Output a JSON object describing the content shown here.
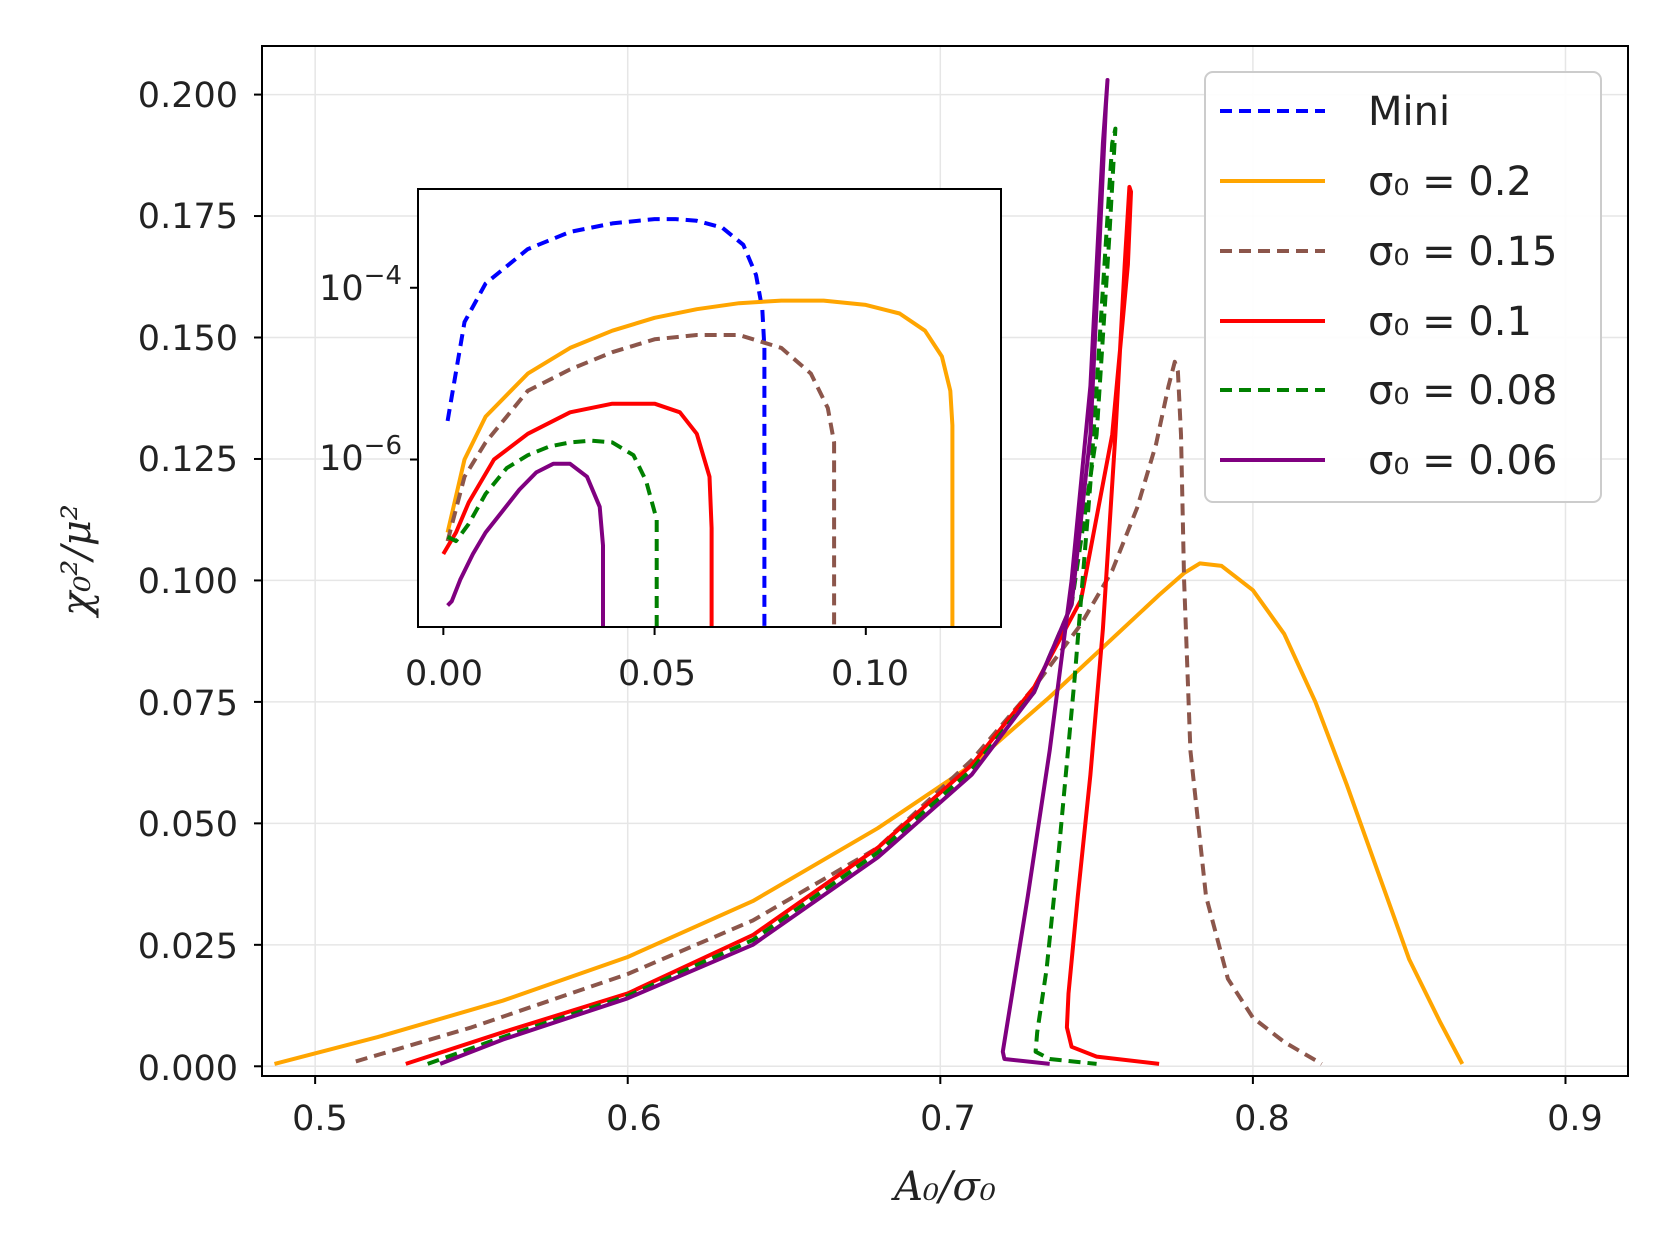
{
  "chart_data": [
    {
      "type": "line",
      "panel": "main",
      "xlabel": "A₀/σ₀",
      "ylabel": "χ₀²/μ²",
      "xlim": [
        0.483,
        0.92
      ],
      "ylim": [
        -0.002,
        0.21
      ],
      "xticks": [
        "0.5",
        "0.6",
        "0.7",
        "0.8",
        "0.9"
      ],
      "yticks": [
        "0.000",
        "0.025",
        "0.050",
        "0.075",
        "0.100",
        "0.125",
        "0.150",
        "0.175",
        "0.200"
      ],
      "grid": true,
      "legend_position": "top-right",
      "legend": [
        "Mini",
        "σ₀ = 0.2",
        "σ₀ = 0.15",
        "σ₀ = 0.1",
        "σ₀ = 0.08",
        "σ₀ = 0.06"
      ],
      "series": [
        {
          "name": "Mini",
          "color": "#0000ff",
          "dash": true,
          "x": [],
          "y": []
        },
        {
          "name": "σ₀ = 0.2",
          "color": "#ffa500",
          "dash": false,
          "x": [
            0.487,
            0.52,
            0.56,
            0.6,
            0.64,
            0.68,
            0.71,
            0.735,
            0.755,
            0.77,
            0.778,
            0.783,
            0.79,
            0.8,
            0.81,
            0.82,
            0.83,
            0.84,
            0.85,
            0.86,
            0.867
          ],
          "y": [
            0.0005,
            0.006,
            0.0135,
            0.0225,
            0.034,
            0.049,
            0.062,
            0.076,
            0.088,
            0.097,
            0.1015,
            0.1035,
            0.103,
            0.098,
            0.089,
            0.075,
            0.058,
            0.04,
            0.022,
            0.009,
            0.0005
          ]
        },
        {
          "name": "σ₀ = 0.15",
          "color": "#8c564b",
          "dash": true,
          "x": [
            0.513,
            0.55,
            0.6,
            0.64,
            0.68,
            0.71,
            0.73,
            0.745,
            0.755,
            0.763,
            0.769,
            0.773,
            0.775,
            0.776,
            0.777,
            0.778,
            0.78,
            0.785,
            0.792,
            0.8,
            0.81,
            0.822
          ],
          "y": [
            0.001,
            0.008,
            0.019,
            0.03,
            0.045,
            0.063,
            0.078,
            0.091,
            0.102,
            0.115,
            0.128,
            0.14,
            0.145,
            0.143,
            0.13,
            0.1,
            0.065,
            0.035,
            0.018,
            0.01,
            0.005,
            0.0005
          ]
        },
        {
          "name": "σ₀ = 0.1",
          "color": "#ff0000",
          "dash": false,
          "x": [
            0.529,
            0.56,
            0.6,
            0.64,
            0.68,
            0.71,
            0.73,
            0.745,
            0.755,
            0.76,
            0.761,
            0.7605,
            0.759,
            0.756,
            0.752,
            0.748,
            0.744,
            0.741,
            0.7405,
            0.742,
            0.75,
            0.77
          ],
          "y": [
            0.0005,
            0.007,
            0.015,
            0.027,
            0.045,
            0.062,
            0.078,
            0.096,
            0.13,
            0.165,
            0.18,
            0.181,
            0.165,
            0.13,
            0.09,
            0.06,
            0.035,
            0.015,
            0.008,
            0.004,
            0.002,
            0.0005
          ]
        },
        {
          "name": "σ₀ = 0.08",
          "color": "#008000",
          "dash": true,
          "x": [
            0.536,
            0.56,
            0.6,
            0.64,
            0.68,
            0.71,
            0.73,
            0.742,
            0.75,
            0.754,
            0.756,
            0.755,
            0.752,
            0.748,
            0.743,
            0.738,
            0.734,
            0.731,
            0.7305,
            0.735,
            0.75
          ],
          "y": [
            0.0005,
            0.006,
            0.0145,
            0.026,
            0.044,
            0.061,
            0.077,
            0.095,
            0.13,
            0.17,
            0.193,
            0.19,
            0.16,
            0.12,
            0.08,
            0.045,
            0.02,
            0.007,
            0.003,
            0.0015,
            0.0005
          ]
        },
        {
          "name": "σ₀ = 0.06",
          "color": "#800080",
          "dash": false,
          "x": [
            0.54,
            0.56,
            0.6,
            0.64,
            0.68,
            0.71,
            0.73,
            0.742,
            0.748,
            0.751,
            0.753,
            0.7535,
            0.752,
            0.748,
            0.742,
            0.735,
            0.728,
            0.723,
            0.72,
            0.7205,
            0.735
          ],
          "y": [
            0.0005,
            0.0055,
            0.014,
            0.025,
            0.043,
            0.06,
            0.077,
            0.095,
            0.13,
            0.17,
            0.198,
            0.203,
            0.19,
            0.14,
            0.1,
            0.065,
            0.035,
            0.015,
            0.003,
            0.0015,
            0.0005
          ]
        }
      ]
    },
    {
      "type": "line",
      "panel": "inset",
      "yscale": "log",
      "xlim": [
        -0.006,
        0.132
      ],
      "ylim_log10": [
        -7.95,
        -2.85
      ],
      "xticks": [
        "0.00",
        "0.05",
        "0.10"
      ],
      "yticks": [
        {
          "label": "10",
          "exp": "−4",
          "log10": -4
        },
        {
          "label": "10",
          "exp": "−6",
          "log10": -6
        }
      ],
      "series": [
        {
          "name": "Mini",
          "color": "#0000ff",
          "dash": true,
          "x": [
            0.001,
            0.005,
            0.01,
            0.02,
            0.03,
            0.04,
            0.05,
            0.055,
            0.06,
            0.066,
            0.071,
            0.074,
            0.0755,
            0.076,
            0.076,
            0.076
          ],
          "log10y": [
            -5.55,
            -4.4,
            -3.95,
            -3.55,
            -3.35,
            -3.25,
            -3.2,
            -3.2,
            -3.22,
            -3.3,
            -3.5,
            -3.85,
            -4.25,
            -4.7,
            -6.5,
            -7.95
          ]
        },
        {
          "name": "σ₀ = 0.2",
          "color": "#ffa500",
          "dash": false,
          "x": [
            0.001,
            0.005,
            0.01,
            0.02,
            0.03,
            0.04,
            0.05,
            0.06,
            0.07,
            0.08,
            0.09,
            0.1,
            0.108,
            0.114,
            0.118,
            0.12,
            0.1205,
            0.1205,
            0.1205
          ],
          "log10y": [
            -6.85,
            -6.0,
            -5.5,
            -5.0,
            -4.7,
            -4.5,
            -4.35,
            -4.25,
            -4.18,
            -4.15,
            -4.15,
            -4.2,
            -4.3,
            -4.5,
            -4.8,
            -5.2,
            -5.6,
            -7.0,
            -7.95
          ]
        },
        {
          "name": "σ₀ = 0.15",
          "color": "#8c564b",
          "dash": true,
          "x": [
            0.001,
            0.005,
            0.01,
            0.02,
            0.03,
            0.04,
            0.05,
            0.06,
            0.07,
            0.08,
            0.087,
            0.091,
            0.0925,
            0.0925,
            0.0925
          ],
          "log10y": [
            -6.95,
            -6.2,
            -5.8,
            -5.2,
            -4.95,
            -4.75,
            -4.6,
            -4.55,
            -4.55,
            -4.7,
            -5.0,
            -5.4,
            -5.8,
            -7.0,
            -7.95
          ]
        },
        {
          "name": "σ₀ = 0.1",
          "color": "#ff0000",
          "dash": false,
          "x": [
            0.0,
            0.003,
            0.006,
            0.012,
            0.02,
            0.03,
            0.04,
            0.05,
            0.056,
            0.06,
            0.063,
            0.0635,
            0.0635,
            0.0635
          ],
          "log10y": [
            -7.1,
            -6.85,
            -6.5,
            -6.0,
            -5.7,
            -5.45,
            -5.35,
            -5.35,
            -5.45,
            -5.7,
            -6.2,
            -6.8,
            -7.5,
            -7.95
          ]
        },
        {
          "name": "σ₀ = 0.08",
          "color": "#008000",
          "dash": true,
          "x": [
            0.001,
            0.003,
            0.006,
            0.01,
            0.015,
            0.02,
            0.025,
            0.03,
            0.035,
            0.04,
            0.045,
            0.048,
            0.0505,
            0.0505,
            0.0505
          ],
          "log10y": [
            -6.9,
            -6.95,
            -6.75,
            -6.4,
            -6.1,
            -5.95,
            -5.85,
            -5.8,
            -5.78,
            -5.8,
            -5.95,
            -6.25,
            -6.7,
            -7.5,
            -7.95
          ]
        },
        {
          "name": "σ₀ = 0.06",
          "color": "#800080",
          "dash": false,
          "x": [
            0.001,
            0.002,
            0.004,
            0.007,
            0.01,
            0.014,
            0.018,
            0.022,
            0.026,
            0.03,
            0.034,
            0.037,
            0.0378,
            0.0378,
            0.0378
          ],
          "log10y": [
            -7.7,
            -7.65,
            -7.4,
            -7.1,
            -6.85,
            -6.6,
            -6.35,
            -6.15,
            -6.05,
            -6.05,
            -6.2,
            -6.55,
            -7.0,
            -7.5,
            -7.95
          ]
        }
      ]
    }
  ]
}
